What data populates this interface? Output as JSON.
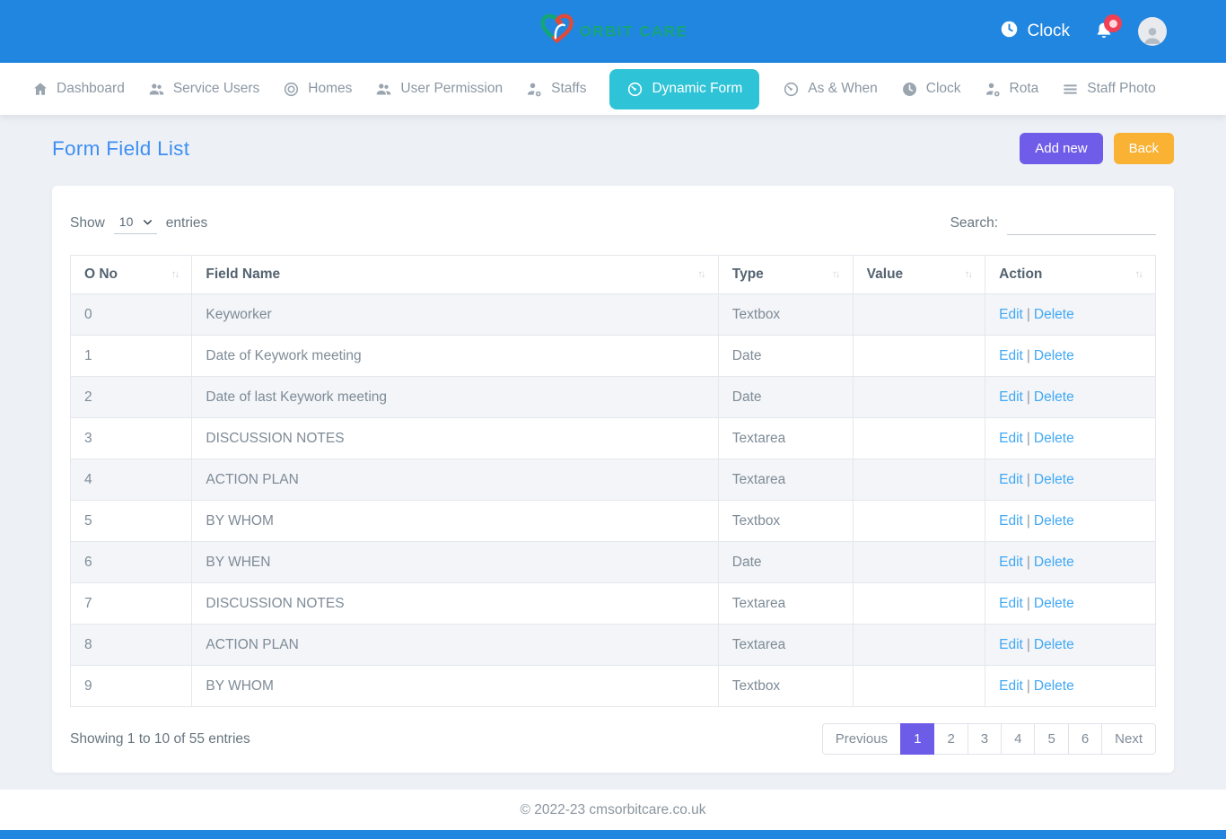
{
  "brand": {
    "name": "ORBIT CARE"
  },
  "header": {
    "clock_label": "Clock"
  },
  "nav": {
    "items": [
      {
        "label": "Dashboard",
        "icon": "home",
        "active": false
      },
      {
        "label": "Service Users",
        "icon": "users",
        "active": false
      },
      {
        "label": "Homes",
        "icon": "target",
        "active": false
      },
      {
        "label": "User Permission",
        "icon": "users",
        "active": false
      },
      {
        "label": "Staffs",
        "icon": "user-gear",
        "active": false
      },
      {
        "label": "Dynamic Form",
        "icon": "gauge",
        "active": true
      },
      {
        "label": "As & When",
        "icon": "gauge",
        "active": false
      },
      {
        "label": "Clock",
        "icon": "clock",
        "active": false
      },
      {
        "label": "Rota",
        "icon": "user-gear",
        "active": false
      },
      {
        "label": "Staff Photo",
        "icon": "menu",
        "active": false
      }
    ]
  },
  "page": {
    "title": "Form Field List",
    "add_new_label": "Add new",
    "back_label": "Back"
  },
  "table_controls": {
    "show_label": "Show",
    "entries_label": "entries",
    "page_length": "10",
    "search_label": "Search:",
    "search_value": ""
  },
  "table": {
    "columns": [
      "O No",
      "Field Name",
      "Type",
      "Value",
      "Action"
    ],
    "rows": [
      {
        "no": "0",
        "field_name": "Keyworker",
        "type": "Textbox",
        "value": ""
      },
      {
        "no": "1",
        "field_name": "Date of Keywork meeting",
        "type": "Date",
        "value": ""
      },
      {
        "no": "2",
        "field_name": "Date of last Keywork meeting",
        "type": "Date",
        "value": ""
      },
      {
        "no": "3",
        "field_name": "DISCUSSION NOTES",
        "type": "Textarea",
        "value": ""
      },
      {
        "no": "4",
        "field_name": "ACTION PLAN",
        "type": "Textarea",
        "value": ""
      },
      {
        "no": "5",
        "field_name": "BY WHOM",
        "type": "Textbox",
        "value": ""
      },
      {
        "no": "6",
        "field_name": "BY WHEN",
        "type": "Date",
        "value": ""
      },
      {
        "no": "7",
        "field_name": "DISCUSSION NOTES",
        "type": "Textarea",
        "value": ""
      },
      {
        "no": "8",
        "field_name": "ACTION PLAN",
        "type": "Textarea",
        "value": ""
      },
      {
        "no": "9",
        "field_name": "BY WHOM",
        "type": "Textbox",
        "value": ""
      }
    ],
    "actions": {
      "edit": "Edit",
      "separator": "|",
      "delete": "Delete"
    }
  },
  "pagination": {
    "summary": "Showing 1 to 10 of 55 entries",
    "previous_label": "Previous",
    "pages": [
      "1",
      "2",
      "3",
      "4",
      "5",
      "6"
    ],
    "active_page": "1",
    "next_label": "Next"
  },
  "footer": {
    "copyright": "© 2022-23 cmsorbitcare.co.uk"
  },
  "colors": {
    "header_blue": "#2186e0",
    "active_tab_teal": "#2fc3d7",
    "title_blue": "#3f8ef3",
    "add_new_purple": "#6f5ce8",
    "back_orange": "#f9b234",
    "link_blue": "#41a8f5",
    "pagination_active_purple": "#6c5ce7",
    "page_background": "#edf1f6",
    "row_stripe": "#f3f5f8",
    "notification_red": "#ef4056",
    "logo_green": "#15a676",
    "logo_red": "#e04a3a"
  }
}
